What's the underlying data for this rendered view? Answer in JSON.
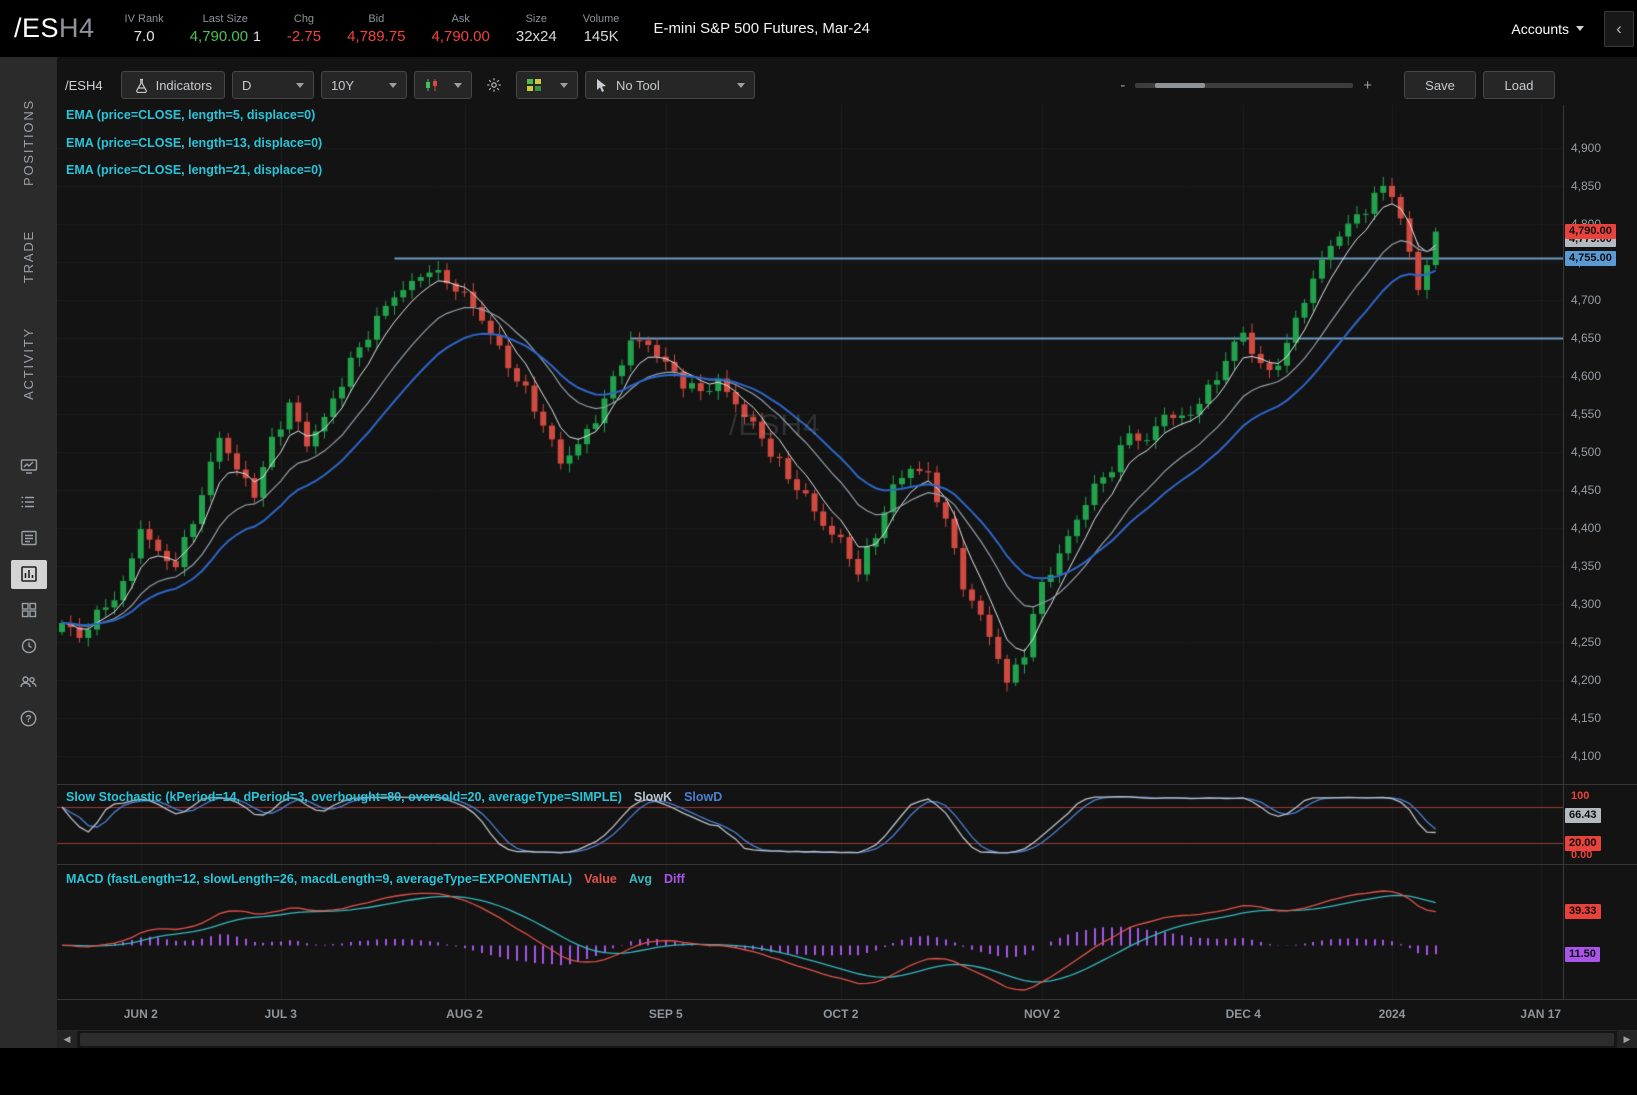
{
  "header": {
    "symbol": "/ES",
    "symbol_suffix": "H4",
    "fields": [
      {
        "label": "IV Rank",
        "value": "7.0",
        "style": "white"
      },
      {
        "label": "Last Size",
        "value": "4,790.00",
        "extra": "1",
        "style": "green"
      },
      {
        "label": "Chg",
        "value": "-2.75",
        "style": "red"
      },
      {
        "label": "Bid",
        "value": "4,789.75",
        "style": "red"
      },
      {
        "label": "Ask",
        "value": "4,790.00",
        "style": "red"
      },
      {
        "label": "Size",
        "value": "32x24",
        "style": "plain"
      },
      {
        "label": "Volume",
        "value": "145K",
        "style": "plain"
      }
    ],
    "title": "E-mini S&P 500 Futures, Mar-24",
    "accounts_label": "Accounts",
    "collapse_glyph": "‹"
  },
  "sidebar": {
    "tabs": [
      {
        "label": "POSITIONS"
      },
      {
        "label": "TRADE"
      },
      {
        "label": "ACTIVITY"
      }
    ],
    "help_glyph": "?"
  },
  "toolbar": {
    "symbol_label": "/ESH4",
    "indicators_label": "Indicators",
    "period_value": "D",
    "range_value": "10Y",
    "tool_value": "No Tool",
    "zoom_minus": "-",
    "zoom_plus": "+",
    "save_label": "Save",
    "load_label": "Load"
  },
  "studies": {
    "ema_labels": [
      "EMA (price=CLOSE, length=5, displace=0)",
      "EMA (price=CLOSE, length=13, displace=0)",
      "EMA (price=CLOSE, length=21, displace=0)"
    ],
    "stochastic": {
      "label": "Slow Stochastic (kPeriod=14, dPeriod=3, overbought=80, oversold=20, averageType=SIMPLE)",
      "series": [
        {
          "name": "SlowK",
          "color": "#b9c2ca"
        },
        {
          "name": "SlowD",
          "color": "#4a7fd4"
        }
      ]
    },
    "macd": {
      "label": "MACD (fastLength=12, slowLength=26, macdLength=9, averageType=EXPONENTIAL)",
      "series": [
        {
          "name": "Value",
          "color": "#e0524a"
        },
        {
          "name": "Avg",
          "color": "#35b8c0"
        },
        {
          "name": "Diff",
          "color": "#a855e8"
        }
      ]
    }
  },
  "watermark": "/ESH4",
  "scrollbar": {
    "left_glyph": "◀",
    "right_glyph": "▶"
  },
  "chart_data": {
    "type": "candlestick",
    "symbol": "/ESH4",
    "period": "D",
    "y_axis": {
      "min": 4100,
      "max": 4900,
      "step": 50,
      "tick_labels": [
        "4,900",
        "4,850",
        "4,800",
        "4,750",
        "4,700",
        "4,650",
        "4,600",
        "4,550",
        "4,500",
        "4,450",
        "4,400",
        "4,350",
        "4,300",
        "4,250",
        "4,200",
        "4,150",
        "4,100"
      ]
    },
    "x_labels": [
      {
        "label": "JUN 2",
        "index": 9
      },
      {
        "label": "JUL 3",
        "index": 25
      },
      {
        "label": "AUG 2",
        "index": 46
      },
      {
        "label": "SEP 5",
        "index": 69
      },
      {
        "label": "OCT 2",
        "index": 89
      },
      {
        "label": "NOV 2",
        "index": 112
      },
      {
        "label": "DEC 4",
        "index": 135
      },
      {
        "label": "2024",
        "index": 152
      },
      {
        "label": "JAN 17",
        "index": 169
      }
    ],
    "candles_count": 158,
    "price_anchors": [
      [
        0,
        4275
      ],
      [
        2,
        4250
      ],
      [
        5,
        4300
      ],
      [
        7,
        4330
      ],
      [
        9,
        4400
      ],
      [
        11,
        4360
      ],
      [
        13,
        4350
      ],
      [
        16,
        4450
      ],
      [
        18,
        4520
      ],
      [
        20,
        4470
      ],
      [
        22,
        4445
      ],
      [
        24,
        4520
      ],
      [
        26,
        4565
      ],
      [
        28,
        4505
      ],
      [
        30,
        4540
      ],
      [
        33,
        4625
      ],
      [
        36,
        4672
      ],
      [
        38,
        4700
      ],
      [
        40,
        4722
      ],
      [
        42,
        4748
      ],
      [
        44,
        4725
      ],
      [
        46,
        4700
      ],
      [
        48,
        4672
      ],
      [
        50,
        4640
      ],
      [
        53,
        4580
      ],
      [
        55,
        4530
      ],
      [
        57,
        4484
      ],
      [
        59,
        4515
      ],
      [
        61,
        4548
      ],
      [
        63,
        4590
      ],
      [
        65,
        4640
      ],
      [
        67,
        4645
      ],
      [
        69,
        4622
      ],
      [
        71,
        4590
      ],
      [
        73,
        4572
      ],
      [
        75,
        4592
      ],
      [
        77,
        4570
      ],
      [
        79,
        4538
      ],
      [
        81,
        4495
      ],
      [
        83,
        4462
      ],
      [
        85,
        4445
      ],
      [
        87,
        4410
      ],
      [
        89,
        4380
      ],
      [
        91,
        4336
      ],
      [
        93,
        4392
      ],
      [
        95,
        4460
      ],
      [
        97,
        4482
      ],
      [
        99,
        4462
      ],
      [
        101,
        4408
      ],
      [
        103,
        4330
      ],
      [
        105,
        4288
      ],
      [
        107,
        4228
      ],
      [
        108,
        4188
      ],
      [
        110,
        4235
      ],
      [
        112,
        4332
      ],
      [
        114,
        4368
      ],
      [
        116,
        4408
      ],
      [
        118,
        4448
      ],
      [
        120,
        4482
      ],
      [
        122,
        4532
      ],
      [
        124,
        4512
      ],
      [
        126,
        4545
      ],
      [
        128,
        4540
      ],
      [
        130,
        4572
      ],
      [
        132,
        4602
      ],
      [
        134,
        4638
      ],
      [
        135,
        4650
      ],
      [
        136,
        4628
      ],
      [
        138,
        4605
      ],
      [
        140,
        4648
      ],
      [
        142,
        4700
      ],
      [
        144,
        4745
      ],
      [
        146,
        4788
      ],
      [
        148,
        4815
      ],
      [
        150,
        4838
      ],
      [
        151,
        4846
      ],
      [
        152,
        4835
      ],
      [
        153,
        4800
      ],
      [
        154,
        4758
      ],
      [
        155,
        4714
      ],
      [
        156,
        4755
      ],
      [
        157,
        4790
      ]
    ],
    "support_lines": [
      {
        "price": 4755,
        "from_index": 38
      },
      {
        "price": 4650,
        "from_index": 65
      }
    ],
    "price_badges": [
      {
        "label": "4,790.00",
        "price": 4790,
        "type": "red"
      },
      {
        "label": "4,779.00",
        "price": 4779,
        "type": "gray"
      },
      {
        "label": "4,755.00",
        "price": 4755,
        "type": "blue"
      }
    ],
    "emas": [
      {
        "length": 5,
        "color": "#dfe5ea",
        "width": 1
      },
      {
        "length": 13,
        "color": "#93a0ab",
        "width": 1.2
      },
      {
        "length": 21,
        "color": "#2d66c8",
        "width": 2
      }
    ],
    "stochastic": {
      "k_period": 14,
      "d_period": 3,
      "overbought": 80,
      "oversold": 20,
      "axis_top": "100",
      "axis_bottom": "0.00",
      "badges": [
        {
          "label": "66.43",
          "value": 66.43,
          "type": "gray"
        },
        {
          "label": "20.00",
          "value": 20,
          "type": "red"
        }
      ]
    },
    "macd": {
      "fast": 12,
      "slow": 26,
      "signal": 9,
      "badges": [
        {
          "label": "39.33",
          "series": "value",
          "type": "red"
        },
        {
          "label": "11.50",
          "series": "diff",
          "type": "purple"
        }
      ]
    },
    "candle_up_color": "#22a24c",
    "candle_down_color": "#d04a40",
    "support_line_color": "#6e9cc4",
    "stoch_band_color": "#9e3b33"
  }
}
